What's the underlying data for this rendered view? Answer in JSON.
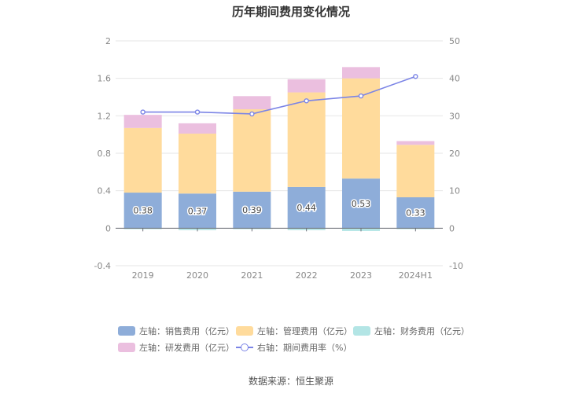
{
  "chart_data": {
    "type": "bar",
    "title": "历年期间费用变化情况",
    "categories": [
      "2019",
      "2020",
      "2021",
      "2022",
      "2023",
      "2024H1"
    ],
    "left_axis": {
      "min": -0.4,
      "max": 2,
      "ticks": [
        "-0.4",
        "0",
        "0.4",
        "0.8",
        "1.2",
        "1.6",
        "2"
      ]
    },
    "right_axis": {
      "min": -10,
      "max": 50,
      "ticks": [
        "-10",
        "0",
        "10",
        "20",
        "30",
        "40",
        "50"
      ]
    },
    "series": [
      {
        "name": "左轴：销售费用（亿元）",
        "axis": "left",
        "kind": "bar",
        "color": "#8eadd9",
        "values": [
          0.38,
          0.37,
          0.39,
          0.44,
          0.53,
          0.33
        ],
        "labels": [
          "0.38",
          "0.37",
          "0.39",
          "0.44",
          "0.53",
          "0.33"
        ]
      },
      {
        "name": "左轴：管理费用（亿元）",
        "axis": "left",
        "kind": "bar",
        "color": "#ffdb9c",
        "values": [
          0.69,
          0.64,
          0.88,
          1.01,
          1.07,
          0.56
        ]
      },
      {
        "name": "左轴：财务费用（亿元）",
        "axis": "left",
        "kind": "bar",
        "color": "#b3e5e5",
        "values": [
          -0.01,
          -0.02,
          -0.01,
          -0.02,
          -0.03,
          -0.01
        ]
      },
      {
        "name": "左轴：研发费用（亿元）",
        "axis": "left",
        "kind": "bar",
        "color": "#ebbfdf",
        "values": [
          0.14,
          0.11,
          0.14,
          0.14,
          0.12,
          0.04
        ]
      },
      {
        "name": "右轴：期间费用率（%）",
        "axis": "right",
        "kind": "line",
        "color": "#7b84e6",
        "values": [
          31,
          31,
          30.5,
          34,
          35.3,
          40.5
        ]
      }
    ],
    "grid": true,
    "legend_position": "bottom"
  },
  "source_text": "数据来源：恒生聚源"
}
